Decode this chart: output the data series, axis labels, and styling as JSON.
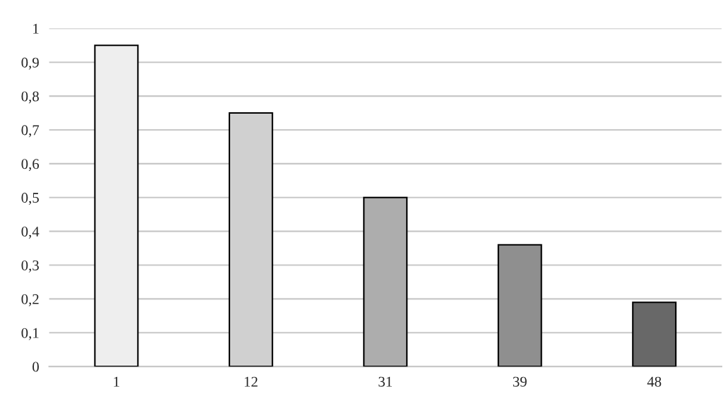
{
  "chart_data": {
    "type": "bar",
    "categories": [
      "1",
      "12",
      "31",
      "39",
      "48"
    ],
    "values": [
      0.95,
      0.75,
      0.5,
      0.36,
      0.19
    ],
    "colors": [
      "#eeeeee",
      "#d0d0d0",
      "#adadad",
      "#8f8f8f",
      "#686868"
    ],
    "ylim": [
      0,
      1
    ],
    "yticks": [
      0,
      {
        "value": 0.1,
        "label": "0,1"
      },
      {
        "value": 0.2,
        "label": "0,2"
      },
      {
        "value": 0.3,
        "label": "0,3"
      },
      {
        "value": 0.4,
        "label": "0,4"
      },
      {
        "value": 0.5,
        "label": "0,5"
      },
      {
        "value": 0.6,
        "label": "0,6"
      },
      {
        "value": 0.7,
        "label": "0,7"
      },
      {
        "value": 0.8,
        "label": "0,8"
      },
      {
        "value": 0.9,
        "label": "0,9"
      },
      1
    ],
    "grid": "y"
  }
}
